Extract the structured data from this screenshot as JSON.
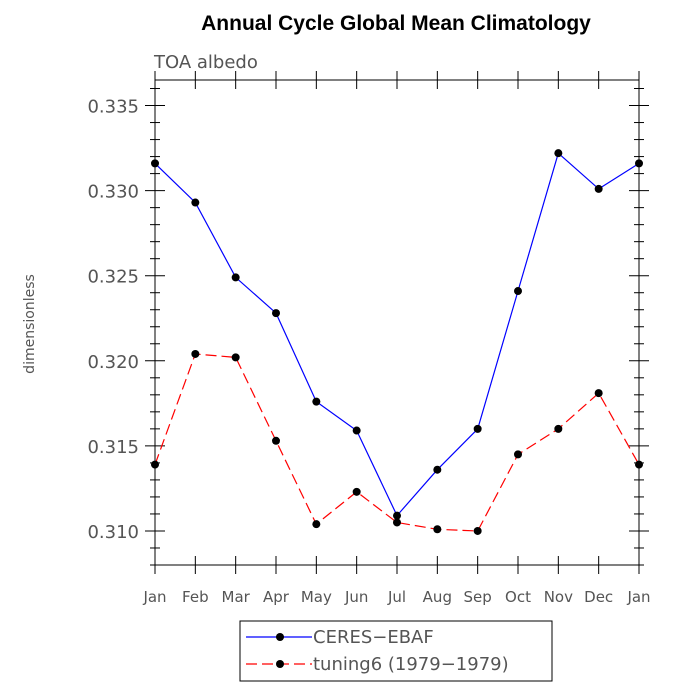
{
  "chart_data": {
    "type": "line",
    "title": "Annual Cycle Global Mean Climatology",
    "subtitle": "TOA albedo",
    "xlabel": "",
    "ylabel": "dimensionless",
    "categories": [
      "Jan",
      "Feb",
      "Mar",
      "Apr",
      "May",
      "Jun",
      "Jul",
      "Aug",
      "Sep",
      "Oct",
      "Nov",
      "Dec",
      "Jan"
    ],
    "ylim": [
      0.308,
      0.3365
    ],
    "yticks": [
      "0.310",
      "0.315",
      "0.320",
      "0.325",
      "0.330",
      "0.335"
    ],
    "grid": false,
    "legend_position": "bottom",
    "series": [
      {
        "name": "CERES−EBAF",
        "color": "#0000ff",
        "dash": "solid",
        "values": [
          0.3316,
          0.3293,
          0.3249,
          0.3228,
          0.3176,
          0.3159,
          0.3109,
          0.3136,
          0.316,
          0.3241,
          0.3322,
          0.3301,
          0.3316
        ]
      },
      {
        "name": "tuning6 (1979−1979)",
        "color": "#ff0000",
        "dash": "dashed",
        "values": [
          0.3139,
          0.3204,
          0.3202,
          0.3153,
          0.3104,
          0.3123,
          0.3105,
          0.3101,
          0.31,
          0.3145,
          0.316,
          0.3181,
          0.3139
        ]
      }
    ]
  }
}
